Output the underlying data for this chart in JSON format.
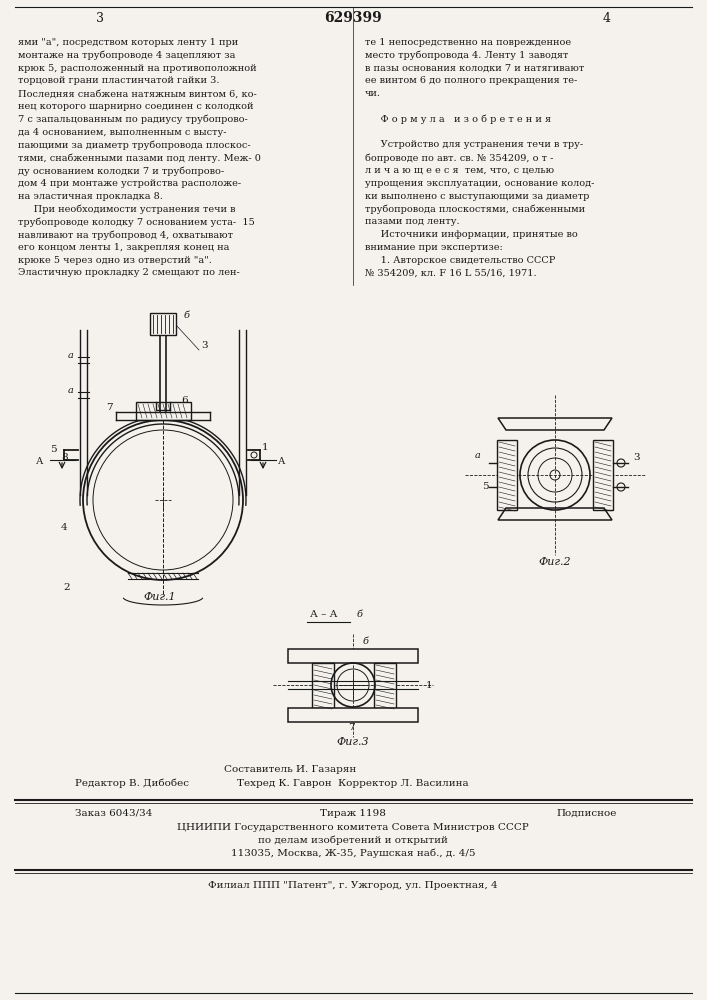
{
  "bg_color": "#f5f2ed",
  "page_color": "#f5f2ed",
  "title_number": "629399",
  "page_left": "3",
  "page_right": "4",
  "top_text_left": [
    "ями \"а\", посредством которых ленту 1 при",
    "монтаже на трубопроводе 4 зацепляют за",
    "крюк 5, расположенный на противоположной",
    "торцовой грани пластинчатой гайки 3.",
    "Последняя снабжена натяжным винтом 6, ко-",
    "нец которого шарнирно соединен с колодкой",
    "7 с запальцованным по радиусу трубопрово-",
    "да 4 основанием, выполненным с высту-",
    "пающими за диаметр трубопровода плоскос-",
    "тями, снабженными пазами под ленту. Меж- 0",
    "ду основанием колодки 7 и трубопрово-",
    "дом 4 при монтаже устройства расположе-",
    "на эластичная прокладка 8.",
    "     При необходимости устранения течи в",
    "трубопроводе колодку 7 основанием уста-  15",
    "навливают на трубопровод 4, охватывают",
    "его концом ленты 1, закрепляя конец на",
    "крюке 5 через одно из отверстий \"а\".",
    "Эластичную прокладку 2 смещают по лен-"
  ],
  "top_text_right": [
    "те 1 непосредственно на поврежденное",
    "место трубопровода 4. Ленту 1 заводят",
    "в пазы основания колодки 7 и натягивают",
    "ее винтом 6 до полного прекращения те-",
    "чи.",
    "",
    "     Ф о р м у л а   и з о б р е т е н и я",
    "",
    "     Устройство для устранения течи в тру-",
    "бопроводе по авт. св. № 354209, о т -",
    "л и ч а ю щ е е с я  тем, что, с целью",
    "упрощения эксплуатации, основание колод-",
    "ки выполнено с выступающими за диаметр",
    "трубопровода плоскостями, снабженными",
    "пазами под ленту.",
    "     Источники информации, принятые во",
    "внимание при экспертизе:",
    "     1. Авторское свидетельство СССР",
    "№ 354209, кл. F 16 L 55/16, 1971."
  ],
  "fig1_label": "Фиг.1",
  "fig2_label": "Фиг.2",
  "fig3_label": "Фиг.3",
  "fig3_top_label": "А – А",
  "bottom_line1_center": "Составитель И. Газарян",
  "bottom_line1_left": "Редактор В. Дибобес",
  "bottom_line2_center": "Техред К. Гаврон  Корректор Л. Василина",
  "bottom_table_row1": [
    "Заказ 6043/34",
    "Тираж 1198",
    "Подписное"
  ],
  "bottom_table_row2": "ЦНИИПИ Государственного комитета Совета Министров СССР",
  "bottom_table_row3": "по делам изобретений и открытий",
  "bottom_table_row4": "113035, Москва, Ж-35, Раушская наб., д. 4/5",
  "bottom_final": "Филиал ППП \"Патент\", г. Ужгород, ул. Проектная, 4",
  "line_color": "#1a1a1a",
  "text_color": "#1a1a1a"
}
